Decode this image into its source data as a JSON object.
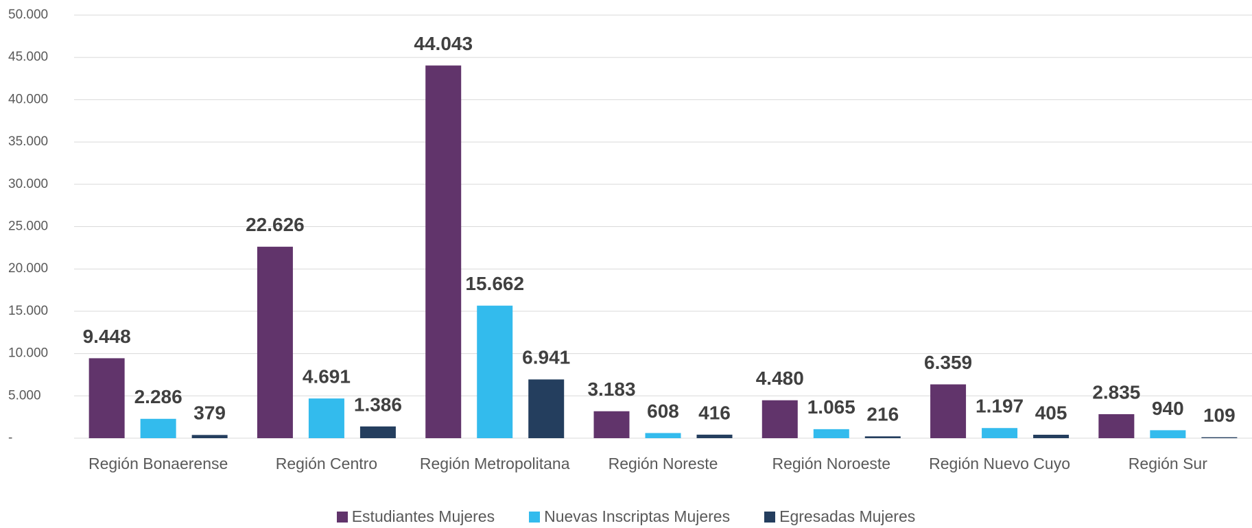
{
  "chart_data": {
    "type": "bar",
    "categories": [
      "Región Bonaerense",
      "Región Centro",
      "Región Metropolitana",
      "Región Noreste",
      "Región Noroeste",
      "Región Nuevo Cuyo",
      "Región Sur"
    ],
    "series": [
      {
        "name": "Estudiantes Mujeres",
        "color": "#61346b",
        "values": [
          9448,
          22626,
          44043,
          3183,
          4480,
          6359,
          2835
        ],
        "value_labels": [
          "9.448",
          "22.626",
          "44.043",
          "3.183",
          "4.480",
          "6.359",
          "2.835"
        ]
      },
      {
        "name": "Nuevas Inscriptas Mujeres",
        "color": "#33bbed",
        "values": [
          2286,
          4691,
          15662,
          608,
          1065,
          1197,
          940
        ],
        "value_labels": [
          "2.286",
          "4.691",
          "15.662",
          "608",
          "1.065",
          "1.197",
          "940"
        ]
      },
      {
        "name": "Egresadas Mujeres",
        "color": "#243e5e",
        "values": [
          379,
          1386,
          6941,
          416,
          216,
          405,
          109
        ],
        "value_labels": [
          "379",
          "1.386",
          "6.941",
          "416",
          "216",
          "405",
          "109"
        ]
      }
    ],
    "ylim": [
      0,
      50000
    ],
    "yticks": [
      {
        "value": 0,
        "label": "-"
      },
      {
        "value": 5000,
        "label": "5.000"
      },
      {
        "value": 10000,
        "label": "10.000"
      },
      {
        "value": 15000,
        "label": "15.000"
      },
      {
        "value": 20000,
        "label": "20.000"
      },
      {
        "value": 25000,
        "label": "25.000"
      },
      {
        "value": 30000,
        "label": "30.000"
      },
      {
        "value": 35000,
        "label": "35.000"
      },
      {
        "value": 40000,
        "label": "40.000"
      },
      {
        "value": 45000,
        "label": "45.000"
      },
      {
        "value": 50000,
        "label": "50.000"
      }
    ],
    "grid": true,
    "legend": "bottom"
  }
}
